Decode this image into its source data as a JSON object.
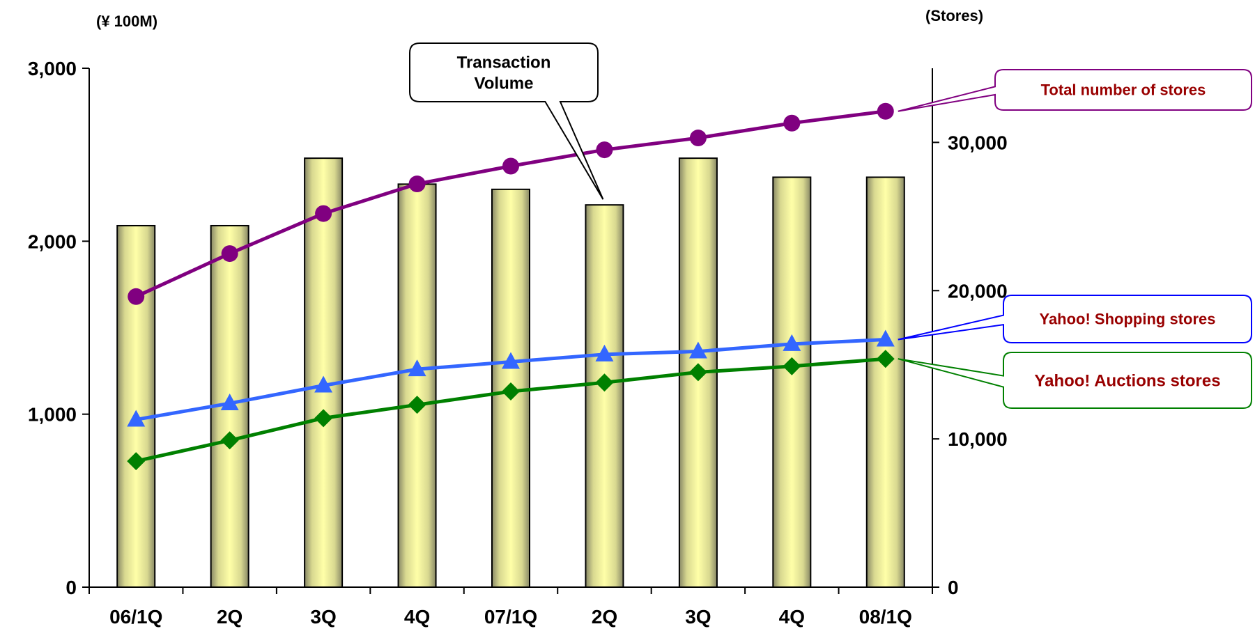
{
  "chart_data": {
    "type": "bar",
    "categories": [
      "06/1Q",
      "2Q",
      "3Q",
      "4Q",
      "07/1Q",
      "2Q",
      "3Q",
      "4Q",
      "08/1Q"
    ],
    "y_left": {
      "unit_label": "(¥ 100M)",
      "range": [
        0,
        3000
      ],
      "ticks": [
        "0",
        "1,000",
        "2,000",
        "3,000"
      ]
    },
    "y_right": {
      "unit_label": "(Stores)",
      "range": [
        0,
        35000
      ],
      "ticks": [
        "0",
        "10,000",
        "20,000",
        "30,000"
      ]
    },
    "series": [
      {
        "name": "Transaction Volume",
        "type": "bar",
        "axis": "left",
        "color": "#FFFF99",
        "values": [
          2090,
          2090,
          2480,
          2330,
          2300,
          2210,
          2480,
          2370,
          2370
        ]
      },
      {
        "name": "Total number of stores",
        "type": "line",
        "axis": "right",
        "marker": "circle",
        "color": "#800080",
        "values": [
          19600,
          22500,
          25200,
          27200,
          28400,
          29500,
          30300,
          31300,
          32100
        ]
      },
      {
        "name": "Yahoo! Shopping stores",
        "type": "line",
        "axis": "right",
        "marker": "triangle",
        "color": "#3366FF",
        "values": [
          11300,
          12400,
          13600,
          14700,
          15200,
          15700,
          15900,
          16400,
          16700
        ]
      },
      {
        "name": "Yahoo! Auctions stores",
        "type": "line",
        "axis": "right",
        "marker": "diamond",
        "color": "#008000",
        "values": [
          8500,
          9900,
          11400,
          12300,
          13200,
          13800,
          14500,
          14900,
          15400
        ]
      }
    ],
    "callouts": [
      {
        "text_lines": [
          "Total number of stores"
        ],
        "text_color": "#990000",
        "border_color": "#800080"
      },
      {
        "text_lines": [
          "Yahoo! Shopping stores"
        ],
        "text_color": "#990000",
        "border_color": "#0000FF"
      },
      {
        "text_lines": [
          "Yahoo! Auctions stores"
        ],
        "text_color": "#990000",
        "border_color": "#008000"
      },
      {
        "text_lines": [
          "Transaction",
          "Volume"
        ],
        "text_color": "#000000",
        "border_color": "#000000"
      }
    ],
    "grid": false,
    "legend": "callouts"
  }
}
